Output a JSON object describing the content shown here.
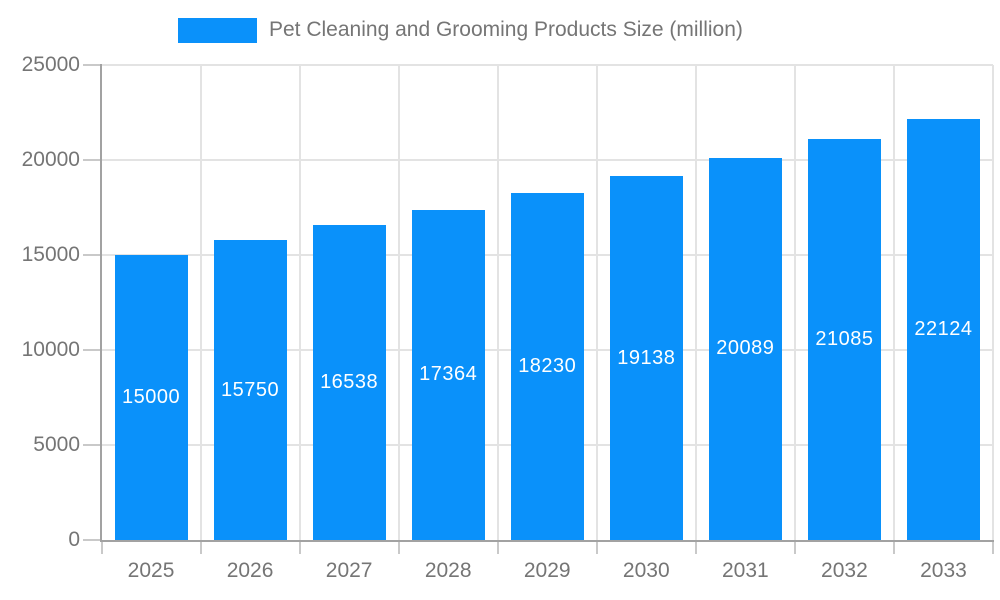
{
  "chart_data": {
    "type": "bar",
    "title": "Pet Cleaning and Grooming Products Size (million)",
    "categories": [
      "2025",
      "2026",
      "2027",
      "2028",
      "2029",
      "2030",
      "2031",
      "2032",
      "2033"
    ],
    "values": [
      15000,
      15750,
      16538,
      17364,
      18230,
      19138,
      20089,
      21085,
      22124
    ],
    "xlabel": "",
    "ylabel": "",
    "ylim": [
      0,
      25000
    ],
    "ytick_interval": 5000,
    "ytick_labels": [
      "0",
      "5000",
      "10000",
      "15000",
      "20000",
      "25000"
    ],
    "grid": true,
    "legend_position": "top",
    "value_labels_shown": true,
    "colors": {
      "bar": "#0A91FA",
      "value_label": "#ffffff",
      "axis_text": "#757575",
      "gridline": "#e3e3e3",
      "tick": "#c9c9c9",
      "axis_line": "#a2a2a2",
      "background": "#ffffff"
    }
  }
}
